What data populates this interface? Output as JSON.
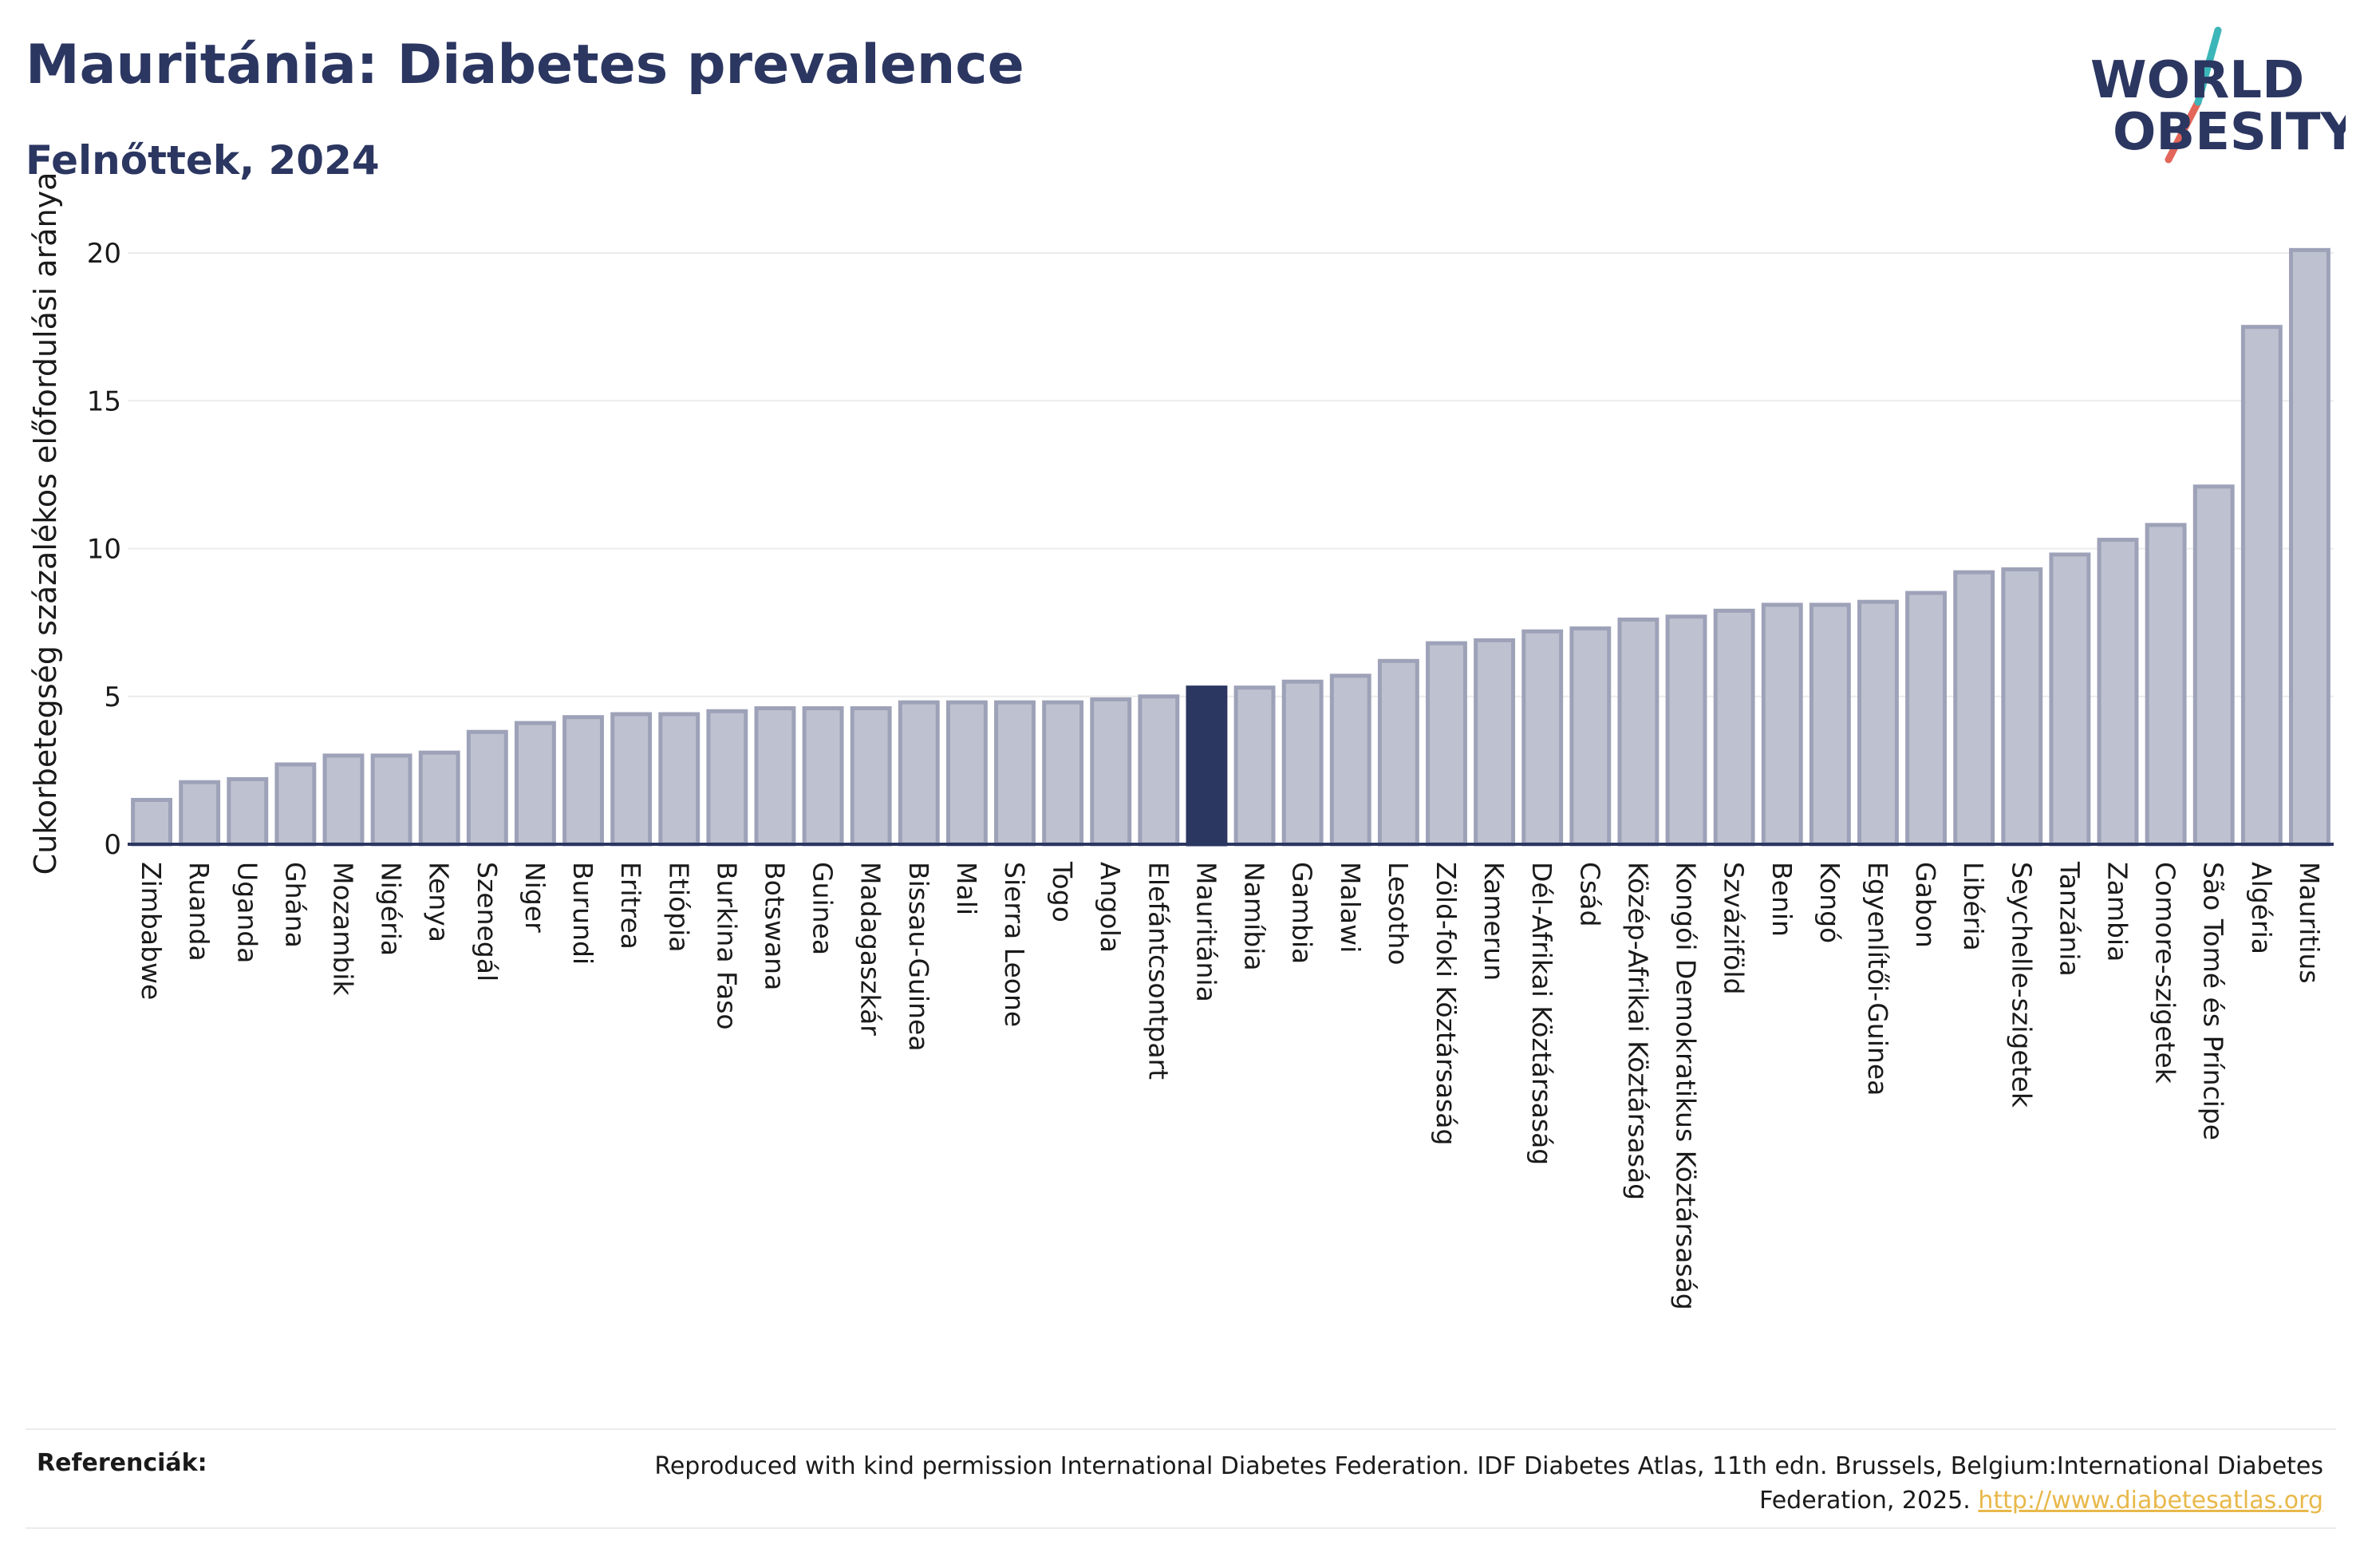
{
  "header": {
    "title": "Mauritánia: Diabetes prevalence",
    "subtitle": "Felnőttek, 2024"
  },
  "logo": {
    "line1": "WORLD",
    "line2": "OBESITY",
    "colors": {
      "text": "#2b3661",
      "slash_top": "#3cb6b8",
      "slash_bottom": "#e2665a"
    }
  },
  "chart_data": {
    "type": "bar",
    "ylabel": "Cukorbetegség százalékos előfordulási aránya",
    "xlabel": "",
    "ylim": [
      0,
      21
    ],
    "yticks": [
      0,
      5,
      10,
      15,
      20
    ],
    "grid": true,
    "highlight": "Mauritánia",
    "colors": {
      "bar": "#bec1cf",
      "bar_border": "#9ea2b8",
      "highlight": "#2b3661",
      "grid": "#ececec",
      "axis": "#2b3661"
    },
    "categories": [
      "Zimbabwe",
      "Ruanda",
      "Uganda",
      "Ghána",
      "Mozambik",
      "Nigéria",
      "Kenya",
      "Szenegál",
      "Niger",
      "Burundi",
      "Eritrea",
      "Etiópia",
      "Burkina Faso",
      "Botswana",
      "Guinea",
      "Madagaszkár",
      "Bissau-Guinea",
      "Mali",
      "Sierra Leone",
      "Togo",
      "Angola",
      "Elefántcsontpart",
      "Mauritánia",
      "Namíbia",
      "Gambia",
      "Malawi",
      "Lesotho",
      "Zöld-foki Köztársaság",
      "Kamerun",
      "Dél-Afrikai Köztársaság",
      "Csád",
      "Közép-Afrikai Köztársaság",
      "Kongói Demokratikus Köztársaság",
      "Szváziföld",
      "Benin",
      "Kongó",
      "Egyenlítői-Guinea",
      "Gabon",
      "Libéria",
      "Seychelle-szigetek",
      "Tanzánia",
      "Zambia",
      "Comore-szigetek",
      "São Tomé és Príncipe",
      "Algéria",
      "Mauritius"
    ],
    "values": [
      1.5,
      2.1,
      2.2,
      2.7,
      3.0,
      3.0,
      3.1,
      3.8,
      4.1,
      4.3,
      4.4,
      4.4,
      4.5,
      4.6,
      4.6,
      4.6,
      4.8,
      4.8,
      4.8,
      4.8,
      4.9,
      5.0,
      5.3,
      5.3,
      5.5,
      5.7,
      6.2,
      6.8,
      6.9,
      7.2,
      7.3,
      7.6,
      7.7,
      7.9,
      8.1,
      8.1,
      8.2,
      8.5,
      9.2,
      9.3,
      9.8,
      10.3,
      10.8,
      12.1,
      17.5,
      20.1
    ]
  },
  "references": {
    "label": "Referenciák:",
    "text": "Reproduced with kind permission International Diabetes Federation. IDF Diabetes Atlas, 11th edn. Brussels, Belgium:International Diabetes Federation, 2025.",
    "link_text": "http://www.diabetesatlas.org"
  }
}
